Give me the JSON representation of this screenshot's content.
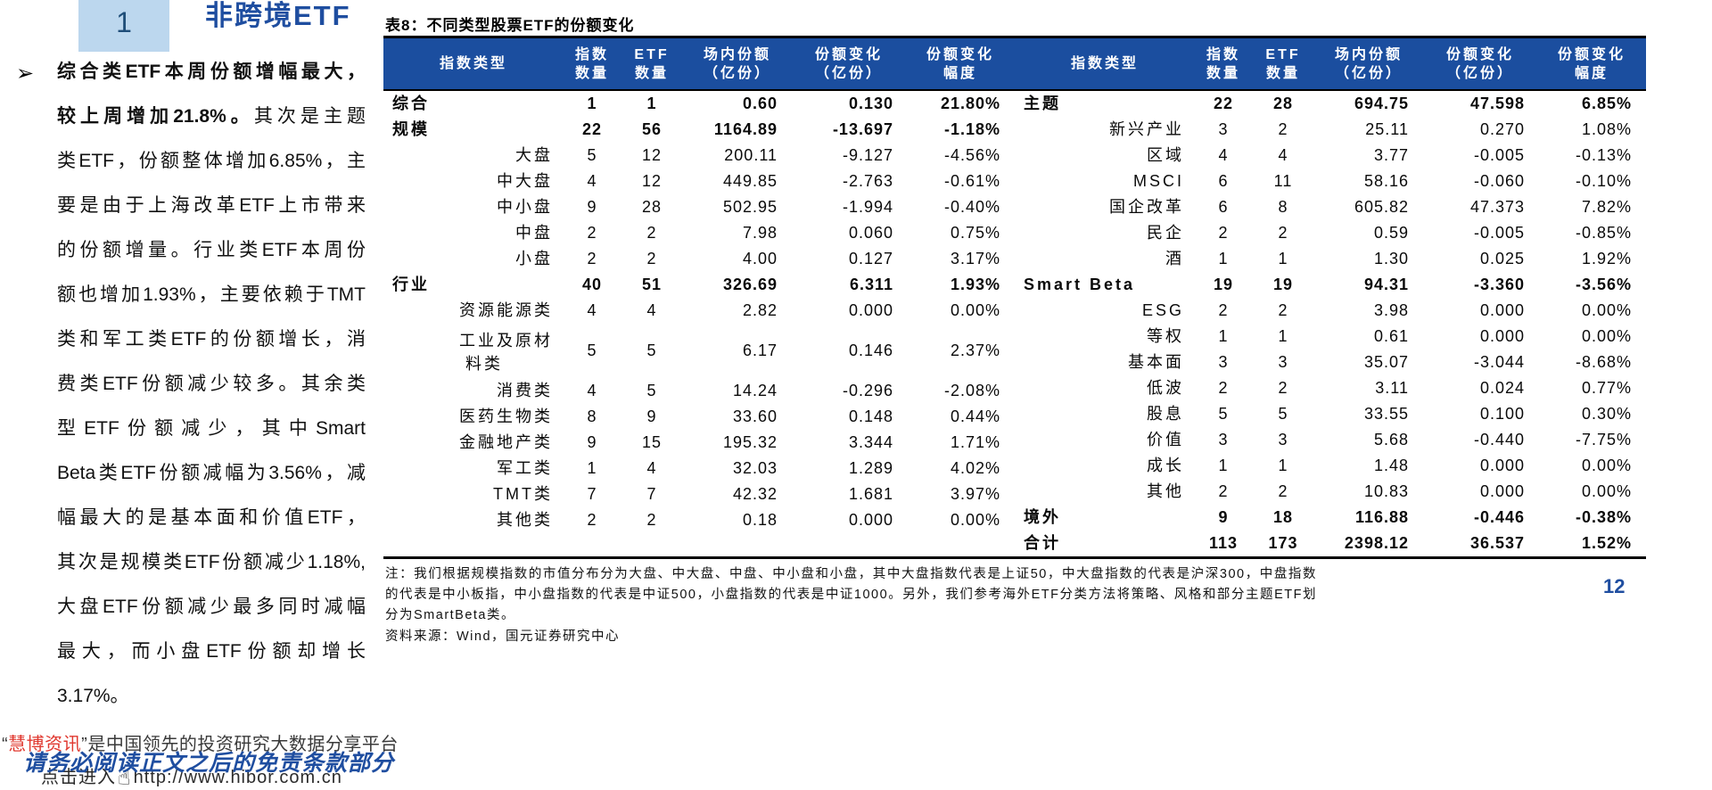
{
  "section": {
    "number": "1",
    "title": "非跨境ETF"
  },
  "paragraph": {
    "bullet": "➢",
    "lines": [
      [
        {
          "t": "综合类ETF本周份额增幅最大，",
          "b": true
        }
      ],
      [
        {
          "t": "较上周增加21.8%。",
          "b": true
        },
        {
          "t": "其次是主题",
          "b": false
        }
      ],
      [
        {
          "t": "类ETF，份额整体增加6.85%，主",
          "b": false
        }
      ],
      [
        {
          "t": "要是由于上海改革ETF上市带来",
          "b": false
        }
      ],
      [
        {
          "t": "的份额增量。行业类ETF本周份",
          "b": false
        }
      ],
      [
        {
          "t": "额也增加1.93%，主要依赖于TMT",
          "b": false
        }
      ],
      [
        {
          "t": "类和军工类ETF的份额增长，消",
          "b": false
        }
      ],
      [
        {
          "t": "费类ETF份额减少较多。其余类",
          "b": false
        }
      ],
      [
        {
          "t": "型ETF份额减少，其中Smart",
          "b": false
        }
      ],
      [
        {
          "t": "Beta类ETF份额减幅为3.56%，减",
          "b": false
        }
      ],
      [
        {
          "t": "幅最大的是基本面和价值ETF，",
          "b": false
        }
      ],
      [
        {
          "t": "其次是规模类ETF份额减少1.18%,",
          "b": false
        }
      ],
      [
        {
          "t": "大盘ETF份额减少最多同时减幅",
          "b": false
        }
      ],
      [
        {
          "t": "最大，而小盘ETF份额却增长",
          "b": false
        }
      ],
      [
        {
          "t": "3.17%。",
          "b": false
        }
      ]
    ]
  },
  "table": {
    "title": "表8：不同类型股票ETF的份额变化",
    "headers": [
      {
        "line1": "指数类型",
        "line2": ""
      },
      {
        "line1": "指数",
        "line2": "数量"
      },
      {
        "line1": "ETF",
        "line2": "数量"
      },
      {
        "line1": "场内份额",
        "line2": "（亿份）"
      },
      {
        "line1": "份额变化",
        "line2": "（亿份）"
      },
      {
        "line1": "份额变化",
        "line2": "幅度"
      }
    ],
    "left_rows": [
      {
        "name": "综合",
        "idx": "1",
        "etf": "1",
        "shares": "0.60",
        "change": "0.130",
        "pct": "21.80%",
        "bold": true
      },
      {
        "name": "规模",
        "idx": "22",
        "etf": "56",
        "shares": "1164.89",
        "change": "-13.697",
        "pct": "-1.18%",
        "bold": true
      },
      {
        "name": "大盘",
        "idx": "5",
        "etf": "12",
        "shares": "200.11",
        "change": "-9.127",
        "pct": "-4.56%"
      },
      {
        "name": "中大盘",
        "idx": "4",
        "etf": "12",
        "shares": "449.85",
        "change": "-2.763",
        "pct": "-0.61%"
      },
      {
        "name": "中小盘",
        "idx": "9",
        "etf": "28",
        "shares": "502.95",
        "change": "-1.994",
        "pct": "-0.40%"
      },
      {
        "name": "中盘",
        "idx": "2",
        "etf": "2",
        "shares": "7.98",
        "change": "0.060",
        "pct": "0.75%"
      },
      {
        "name": "小盘",
        "idx": "2",
        "etf": "2",
        "shares": "4.00",
        "change": "0.127",
        "pct": "3.17%"
      },
      {
        "name": "行业",
        "idx": "40",
        "etf": "51",
        "shares": "326.69",
        "change": "6.311",
        "pct": "1.93%",
        "bold": true
      },
      {
        "name": "资源能源类",
        "idx": "4",
        "etf": "4",
        "shares": "2.82",
        "change": "0.000",
        "pct": "0.00%"
      },
      {
        "name": "工业及原材",
        "name2": "料类",
        "idx": "5",
        "etf": "5",
        "shares": "6.17",
        "change": "0.146",
        "pct": "2.37%"
      },
      {
        "name": "消费类",
        "idx": "4",
        "etf": "5",
        "shares": "14.24",
        "change": "-0.296",
        "pct": "-2.08%"
      },
      {
        "name": "医药生物类",
        "idx": "8",
        "etf": "9",
        "shares": "33.60",
        "change": "0.148",
        "pct": "0.44%"
      },
      {
        "name": "金融地产类",
        "idx": "9",
        "etf": "15",
        "shares": "195.32",
        "change": "3.344",
        "pct": "1.71%"
      },
      {
        "name": "军工类",
        "idx": "1",
        "etf": "4",
        "shares": "32.03",
        "change": "1.289",
        "pct": "4.02%"
      },
      {
        "name": "TMT类",
        "idx": "7",
        "etf": "7",
        "shares": "42.32",
        "change": "1.681",
        "pct": "3.97%"
      },
      {
        "name": "其他类",
        "idx": "2",
        "etf": "2",
        "shares": "0.18",
        "change": "0.000",
        "pct": "0.00%"
      }
    ],
    "right_rows": [
      {
        "name": "主题",
        "idx": "22",
        "etf": "28",
        "shares": "694.75",
        "change": "47.598",
        "pct": "6.85%",
        "bold": true
      },
      {
        "name": "新兴产业",
        "idx": "3",
        "etf": "2",
        "shares": "25.11",
        "change": "0.270",
        "pct": "1.08%"
      },
      {
        "name": "区域",
        "idx": "4",
        "etf": "4",
        "shares": "3.77",
        "change": "-0.005",
        "pct": "-0.13%"
      },
      {
        "name": "MSCI",
        "idx": "6",
        "etf": "11",
        "shares": "58.16",
        "change": "-0.060",
        "pct": "-0.10%"
      },
      {
        "name": "国企改革",
        "idx": "6",
        "etf": "8",
        "shares": "605.82",
        "change": "47.373",
        "pct": "7.82%"
      },
      {
        "name": "民企",
        "idx": "2",
        "etf": "2",
        "shares": "0.59",
        "change": "-0.005",
        "pct": "-0.85%"
      },
      {
        "name": "酒",
        "idx": "1",
        "etf": "1",
        "shares": "1.30",
        "change": "0.025",
        "pct": "1.92%"
      },
      {
        "name": "Smart Beta",
        "idx": "19",
        "etf": "19",
        "shares": "94.31",
        "change": "-3.360",
        "pct": "-3.56%",
        "bold": true
      },
      {
        "name": "ESG",
        "idx": "2",
        "etf": "2",
        "shares": "3.98",
        "change": "0.000",
        "pct": "0.00%"
      },
      {
        "name": "等权",
        "idx": "1",
        "etf": "1",
        "shares": "0.61",
        "change": "0.000",
        "pct": "0.00%"
      },
      {
        "name": "基本面",
        "idx": "3",
        "etf": "3",
        "shares": "35.07",
        "change": "-3.044",
        "pct": "-8.68%"
      },
      {
        "name": "低波",
        "idx": "2",
        "etf": "2",
        "shares": "3.11",
        "change": "0.024",
        "pct": "0.77%"
      },
      {
        "name": "股息",
        "idx": "5",
        "etf": "5",
        "shares": "33.55",
        "change": "0.100",
        "pct": "0.30%"
      },
      {
        "name": "价值",
        "idx": "3",
        "etf": "3",
        "shares": "5.68",
        "change": "-0.440",
        "pct": "-7.75%"
      },
      {
        "name": "成长",
        "idx": "1",
        "etf": "1",
        "shares": "1.48",
        "change": "0.000",
        "pct": "0.00%"
      },
      {
        "name": "其他",
        "idx": "2",
        "etf": "2",
        "shares": "10.83",
        "change": "0.000",
        "pct": "0.00%"
      },
      {
        "name": "境外",
        "idx": "9",
        "etf": "18",
        "shares": "116.88",
        "change": "-0.446",
        "pct": "-0.38%",
        "bold": true
      },
      {
        "name": "合计",
        "idx": "113",
        "etf": "173",
        "shares": "2398.12",
        "change": "36.537",
        "pct": "1.52%",
        "bold": true
      }
    ],
    "note": "注：我们根据规模指数的市值分布分为大盘、中大盘、中盘、中小盘和小盘，其中大盘指数代表是上证50，中大盘指数的代表是沪深300，中盘指数的代表是中小板指，中小盘指数的代表是中证500，小盘指数的代表是中证1000。另外，我们参考海外ETF分类方法将策略、风格和部分主题ETF划分为SmartBeta类。",
    "source": "资料来源：Wind，国元证券研究中心"
  },
  "footer": {
    "brand_prefix": "“",
    "brand": "慧博资讯",
    "brand_suffix": "”是中国领先的投资研究大数据分享平台",
    "disclaimer": "请务必阅读正文之后的免责条款部分",
    "link_prefix": "点击进入",
    "link_url": "http://www.hibor.com.cn",
    "page_number": "12"
  },
  "colors": {
    "header_blue": "#1B4E9F",
    "title_blue": "#1F4EA0",
    "section_box_blue": "#BCD7EE",
    "brand_red": "#E0372E"
  }
}
